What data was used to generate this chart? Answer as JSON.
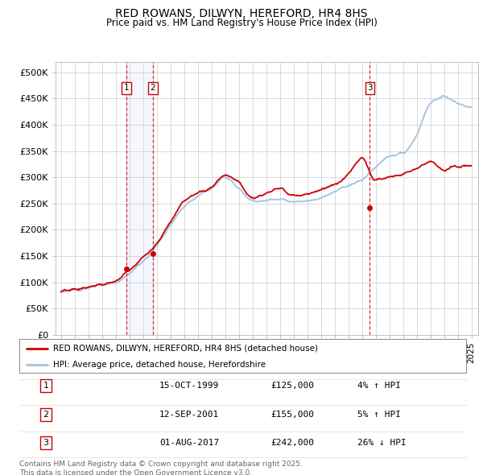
{
  "title": "RED ROWANS, DILWYN, HEREFORD, HR4 8HS",
  "subtitle": "Price paid vs. HM Land Registry's House Price Index (HPI)",
  "ylim": [
    0,
    520000
  ],
  "yticks": [
    0,
    50000,
    100000,
    150000,
    200000,
    250000,
    300000,
    350000,
    400000,
    450000,
    500000
  ],
  "ytick_labels": [
    "£0",
    "£50K",
    "£100K",
    "£150K",
    "£200K",
    "£250K",
    "£300K",
    "£350K",
    "£400K",
    "£450K",
    "£500K"
  ],
  "hpi_color": "#a8c4e0",
  "price_color": "#cc0000",
  "sale_dates": [
    1999.79,
    2001.7,
    2017.58
  ],
  "sale_prices": [
    125000,
    155000,
    242000
  ],
  "sale_labels": [
    "1",
    "2",
    "3"
  ],
  "legend_price_label": "RED ROWANS, DILWYN, HEREFORD, HR4 8HS (detached house)",
  "legend_hpi_label": "HPI: Average price, detached house, Herefordshire",
  "table_data": [
    [
      "1",
      "15-OCT-1999",
      "£125,000",
      "4% ↑ HPI"
    ],
    [
      "2",
      "12-SEP-2001",
      "£155,000",
      "5% ↑ HPI"
    ],
    [
      "3",
      "01-AUG-2017",
      "£242,000",
      "26% ↓ HPI"
    ]
  ],
  "footer": "Contains HM Land Registry data © Crown copyright and database right 2025.\nThis data is licensed under the Open Government Licence v3.0.",
  "background_color": "#ffffff",
  "grid_color": "#cccccc",
  "xlim_start": 1994.6,
  "xlim_end": 2025.5,
  "hpi_keypoints_x": [
    1995,
    1996,
    1997,
    1998,
    1999,
    2000,
    2001,
    2002,
    2003,
    2004,
    2005,
    2006,
    2007,
    2008,
    2009,
    2010,
    2011,
    2012,
    2013,
    2014,
    2015,
    2016,
    2017,
    2018,
    2019,
    2020,
    2021,
    2022,
    2023,
    2024,
    2025
  ],
  "hpi_keypoints_y": [
    82000,
    86000,
    90000,
    95000,
    100000,
    118000,
    140000,
    170000,
    210000,
    245000,
    265000,
    280000,
    300000,
    280000,
    255000,
    255000,
    258000,
    252000,
    255000,
    262000,
    272000,
    285000,
    295000,
    320000,
    340000,
    345000,
    380000,
    440000,
    455000,
    440000,
    435000
  ],
  "price_keypoints_x": [
    1995,
    1996,
    1997,
    1998,
    1999,
    2000,
    2001,
    2002,
    2003,
    2004,
    2005,
    2006,
    2007,
    2008,
    2009,
    2010,
    2011,
    2012,
    2013,
    2014,
    2015,
    2016,
    2017,
    2018,
    2019,
    2020,
    2021,
    2022,
    2023,
    2024,
    2025
  ],
  "price_keypoints_y": [
    82000,
    86000,
    91000,
    96000,
    103000,
    125000,
    148000,
    175000,
    215000,
    255000,
    270000,
    282000,
    305000,
    290000,
    260000,
    268000,
    278000,
    265000,
    268000,
    278000,
    285000,
    305000,
    338000,
    295000,
    300000,
    308000,
    318000,
    330000,
    315000,
    320000,
    322000
  ]
}
